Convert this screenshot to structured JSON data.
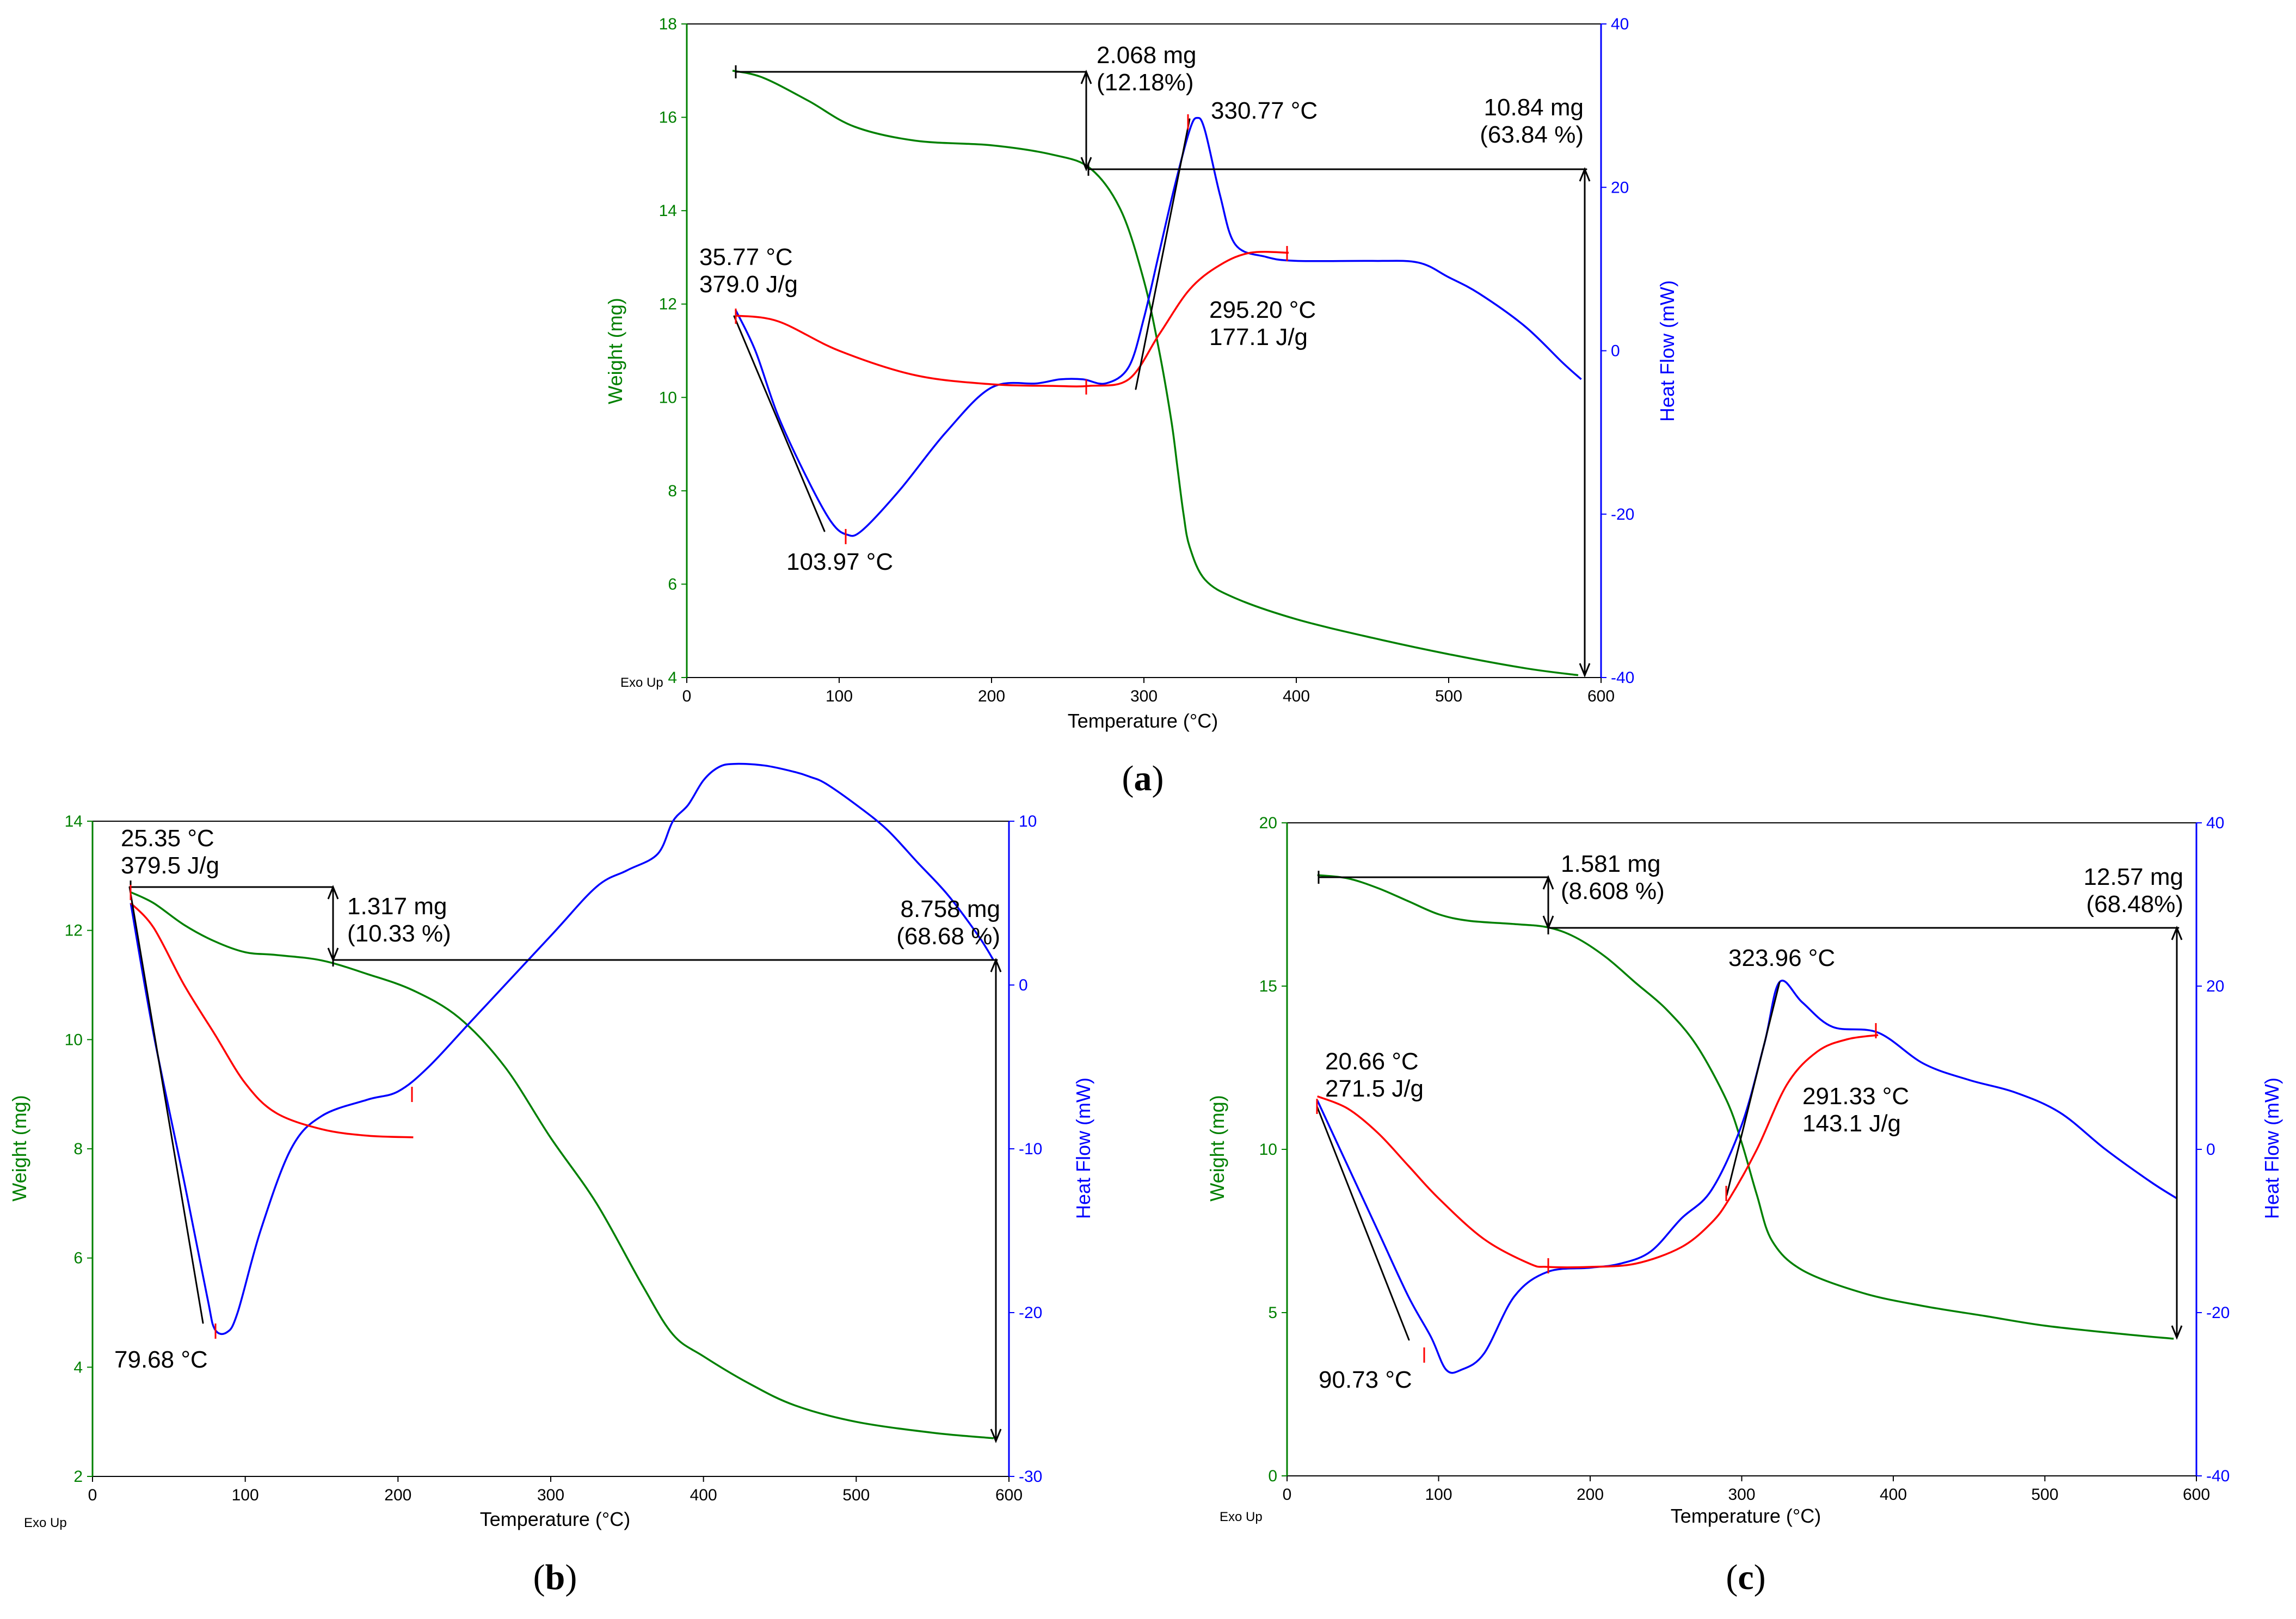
{
  "figure": {
    "exo_label": "Exo Up"
  },
  "chart_data": [
    {
      "id": "a",
      "type": "line",
      "panel_label": "a",
      "xlabel": "Temperature (°C)",
      "ylabel_left": "Weight (mg)",
      "ylabel_right": "Heat Flow (mW)",
      "xlim": [
        0,
        600
      ],
      "ylim_left": [
        4,
        18
      ],
      "ylim_right": [
        -40,
        40
      ],
      "xticks": [
        0,
        100,
        200,
        300,
        400,
        500,
        600
      ],
      "yticks_left": [
        4,
        6,
        8,
        10,
        12,
        14,
        16,
        18
      ],
      "yticks_right": [
        -40,
        -20,
        0,
        20,
        40
      ],
      "series": [
        {
          "name": "Weight",
          "axis": "left",
          "color": "#008000",
          "x": [
            30,
            50,
            80,
            110,
            150,
            200,
            240,
            265,
            285,
            300,
            310,
            318,
            322,
            326,
            330,
            340,
            360,
            400,
            450,
            500,
            550,
            585
          ],
          "y": [
            17.0,
            16.85,
            16.35,
            15.8,
            15.5,
            15.4,
            15.2,
            14.9,
            14.0,
            12.5,
            11.0,
            9.5,
            8.5,
            7.5,
            6.8,
            6.1,
            5.7,
            5.25,
            4.85,
            4.5,
            4.2,
            4.05
          ]
        },
        {
          "name": "Heat Flow",
          "axis": "right",
          "color": "#0000ff",
          "x": [
            32,
            45,
            60,
            80,
            95,
            105,
            115,
            140,
            170,
            200,
            230,
            245,
            260,
            275,
            290,
            300,
            310,
            320,
            330,
            335,
            340,
            350,
            360,
            380,
            400,
            450,
            480,
            500,
            520,
            550,
            575,
            587
          ],
          "y": [
            5,
            0,
            -8,
            -16,
            -21,
            -22.5,
            -22,
            -17,
            -10,
            -4.5,
            -4,
            -3.5,
            -3.5,
            -4,
            -2,
            4,
            12,
            20,
            27,
            28.5,
            27,
            19,
            13,
            11.5,
            11,
            11,
            10.8,
            9,
            7,
            3,
            -1.5,
            -3.5
          ]
        },
        {
          "name": "Integration baseline",
          "axis": "right",
          "color": "#ff0000",
          "x": [
            32,
            60,
            100,
            150,
            200,
            240,
            264,
            290,
            310,
            330,
            350,
            370,
            395
          ],
          "y": [
            4.3,
            3.6,
            0,
            -3,
            -4.1,
            -4.3,
            -4.3,
            -3.5,
            2,
            7.5,
            10.5,
            12,
            12
          ]
        }
      ],
      "annotations": [
        {
          "text": [
            "35.77 °C",
            "379.0 J/g"
          ]
        },
        {
          "text": [
            "103.97 °C"
          ]
        },
        {
          "text": [
            "330.77 °C"
          ]
        },
        {
          "text": [
            "295.20 °C",
            "177.1 J/g"
          ]
        },
        {
          "text": [
            "2.068 mg",
            "(12.18%)"
          ]
        },
        {
          "text": [
            "10.84 mg",
            "(63.84 %)"
          ]
        }
      ]
    },
    {
      "id": "b",
      "type": "line",
      "panel_label": "b",
      "xlabel": "Temperature (°C)",
      "ylabel_left": "Weight (mg)",
      "ylabel_right": "Heat Flow (mW)",
      "xlim": [
        0,
        600
      ],
      "ylim_left": [
        2,
        14
      ],
      "ylim_right": [
        -30,
        10
      ],
      "xticks": [
        0,
        100,
        200,
        300,
        400,
        500,
        600
      ],
      "yticks_left": [
        2,
        4,
        6,
        8,
        10,
        12,
        14
      ],
      "yticks_right": [
        -30,
        -20,
        -10,
        0,
        10
      ],
      "series": [
        {
          "name": "Weight",
          "axis": "left",
          "color": "#008000",
          "x": [
            25,
            40,
            60,
            80,
            100,
            120,
            150,
            180,
            210,
            240,
            270,
            300,
            330,
            360,
            380,
            400,
            430,
            460,
            500,
            550,
            590
          ],
          "y": [
            12.7,
            12.5,
            12.1,
            11.8,
            11.6,
            11.55,
            11.45,
            11.2,
            10.9,
            10.4,
            9.5,
            8.2,
            7.0,
            5.5,
            4.6,
            4.2,
            3.7,
            3.3,
            3.0,
            2.8,
            2.7
          ]
        },
        {
          "name": "Heat Flow",
          "axis": "right",
          "color": "#0000ff",
          "x": [
            25,
            40,
            60,
            75,
            80,
            88,
            95,
            110,
            130,
            150,
            180,
            200,
            220,
            250,
            300,
            330,
            350,
            370,
            380,
            390,
            400,
            410,
            420,
            440,
            460,
            470,
            480,
            500,
            520,
            540,
            560,
            580,
            590
          ],
          "y": [
            5,
            -3,
            -12,
            -19,
            -21,
            -21.2,
            -20,
            -15,
            -10,
            -8,
            -7,
            -6.5,
            -5,
            -2,
            3,
            6,
            7,
            8,
            10,
            11,
            12.5,
            13.3,
            13.5,
            13.4,
            13,
            12.7,
            12.3,
            11,
            9.5,
            7.5,
            5.5,
            3,
            1.5
          ]
        },
        {
          "name": "Integration baseline",
          "axis": "right",
          "color": "#ff0000",
          "x": [
            25,
            40,
            60,
            80,
            100,
            120,
            150,
            180,
            210
          ],
          "y": [
            5,
            3.5,
            0,
            -3,
            -6,
            -7.8,
            -8.8,
            -9.2,
            -9.3
          ]
        }
      ],
      "annotations": [
        {
          "text": [
            "25.35 °C",
            "379.5 J/g"
          ]
        },
        {
          "text": [
            "79.68 °C"
          ]
        },
        {
          "text": [
            "1.317 mg",
            "(10.33 %)"
          ]
        },
        {
          "text": [
            "8.758 mg",
            "(68.68 %)"
          ]
        }
      ]
    },
    {
      "id": "c",
      "type": "line",
      "panel_label": "c",
      "xlabel": "Temperature (°C)",
      "ylabel_left": "Weight (mg)",
      "ylabel_right": "Heat Flow (mW)",
      "xlim": [
        0,
        600
      ],
      "ylim_left": [
        0,
        20
      ],
      "ylim_right": [
        -40,
        40
      ],
      "xticks": [
        0,
        100,
        200,
        300,
        400,
        500,
        600
      ],
      "yticks_left": [
        0,
        5,
        10,
        15,
        20
      ],
      "yticks_right": [
        -40,
        -20,
        0,
        20,
        40
      ],
      "series": [
        {
          "name": "Weight",
          "axis": "left",
          "color": "#008000",
          "x": [
            20,
            40,
            60,
            80,
            100,
            120,
            150,
            172,
            190,
            210,
            230,
            250,
            270,
            290,
            300,
            310,
            320,
            340,
            380,
            420,
            460,
            500,
            550,
            585
          ],
          "y": [
            18.4,
            18.3,
            18.0,
            17.6,
            17.2,
            17.0,
            16.9,
            16.8,
            16.5,
            15.9,
            15.1,
            14.3,
            13.2,
            11.5,
            10.2,
            8.6,
            7.2,
            6.3,
            5.6,
            5.2,
            4.9,
            4.6,
            4.35,
            4.2
          ]
        },
        {
          "name": "Heat Flow",
          "axis": "right",
          "color": "#0000ff",
          "x": [
            20,
            40,
            60,
            80,
            95,
            105,
            115,
            130,
            150,
            172,
            200,
            220,
            240,
            260,
            280,
            300,
            315,
            325,
            340,
            360,
            390,
            420,
            450,
            480,
            510,
            540,
            570,
            587
          ],
          "y": [
            6,
            -2,
            -10,
            -18,
            -23,
            -27,
            -27,
            -25,
            -18,
            -15,
            -14.5,
            -14,
            -12.5,
            -8.5,
            -5,
            3,
            13,
            20.5,
            18,
            15,
            14.3,
            10.5,
            8.5,
            7,
            4.5,
            0,
            -4,
            -6
          ]
        },
        {
          "name": "Integration baseline",
          "axis": "right",
          "color": "#ff0000",
          "x": [
            20,
            40,
            60,
            80,
            100,
            130,
            160,
            172,
            200,
            230,
            260,
            280,
            292,
            310,
            330,
            350,
            370,
            390
          ],
          "y": [
            6.5,
            5,
            2,
            -2,
            -6,
            -11,
            -14,
            -14.4,
            -14.4,
            -14,
            -12,
            -9,
            -6,
            0,
            8,
            12,
            13.5,
            14
          ]
        }
      ],
      "annotations": [
        {
          "text": [
            "20.66 °C",
            "271.5 J/g"
          ]
        },
        {
          "text": [
            "90.73 °C"
          ]
        },
        {
          "text": [
            "323.96 °C"
          ]
        },
        {
          "text": [
            "291.33 °C",
            "143.1 J/g"
          ]
        },
        {
          "text": [
            "1.581 mg",
            "(8.608 %)"
          ]
        },
        {
          "text": [
            "12.57 mg",
            "(68.48%)"
          ]
        }
      ]
    }
  ]
}
